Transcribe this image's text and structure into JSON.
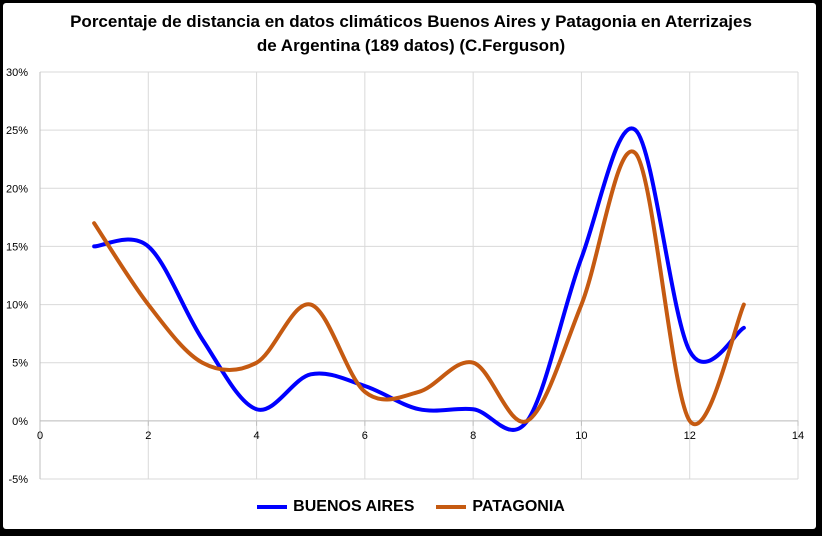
{
  "chart_data": {
    "type": "line",
    "smooth": true,
    "title": [
      "Porcentaje de distancia en datos climáticos Buenos Aires y Patagonia en Aterrizajes",
      "de Argentina (189 datos) (C.Ferguson)"
    ],
    "xlabel": "",
    "ylabel": "",
    "xlim": [
      0,
      14
    ],
    "ylim": [
      -0.05,
      0.3
    ],
    "x_ticks": [
      0,
      2,
      4,
      6,
      8,
      10,
      12,
      14
    ],
    "y_ticks": [
      -0.05,
      0,
      0.05,
      0.1,
      0.15,
      0.2,
      0.25,
      0.3
    ],
    "x_tick_labels": [
      "0",
      "2",
      "4",
      "6",
      "8",
      "10",
      "12",
      "14"
    ],
    "y_tick_labels": [
      "-5%",
      "0%",
      "5%",
      "10%",
      "15%",
      "20%",
      "25%",
      "30%"
    ],
    "grid": true,
    "legend_position": "bottom",
    "series": [
      {
        "name": "BUENOS AIRES",
        "color": "#0000ff",
        "x": [
          1,
          2,
          3,
          4,
          5,
          6,
          7,
          8,
          9,
          10,
          11,
          12,
          13
        ],
        "y": [
          0.15,
          0.15,
          0.07,
          0.01,
          0.04,
          0.03,
          0.01,
          0.01,
          0.0,
          0.14,
          0.25,
          0.06,
          0.08
        ]
      },
      {
        "name": "PATAGONIA",
        "color": "#c55a11",
        "x": [
          1,
          2,
          3,
          4,
          5,
          6,
          7,
          8,
          9,
          10,
          11,
          12,
          13
        ],
        "y": [
          0.17,
          0.1,
          0.05,
          0.05,
          0.1,
          0.025,
          0.025,
          0.05,
          0.0,
          0.1,
          0.23,
          0.0,
          0.1
        ]
      }
    ]
  }
}
